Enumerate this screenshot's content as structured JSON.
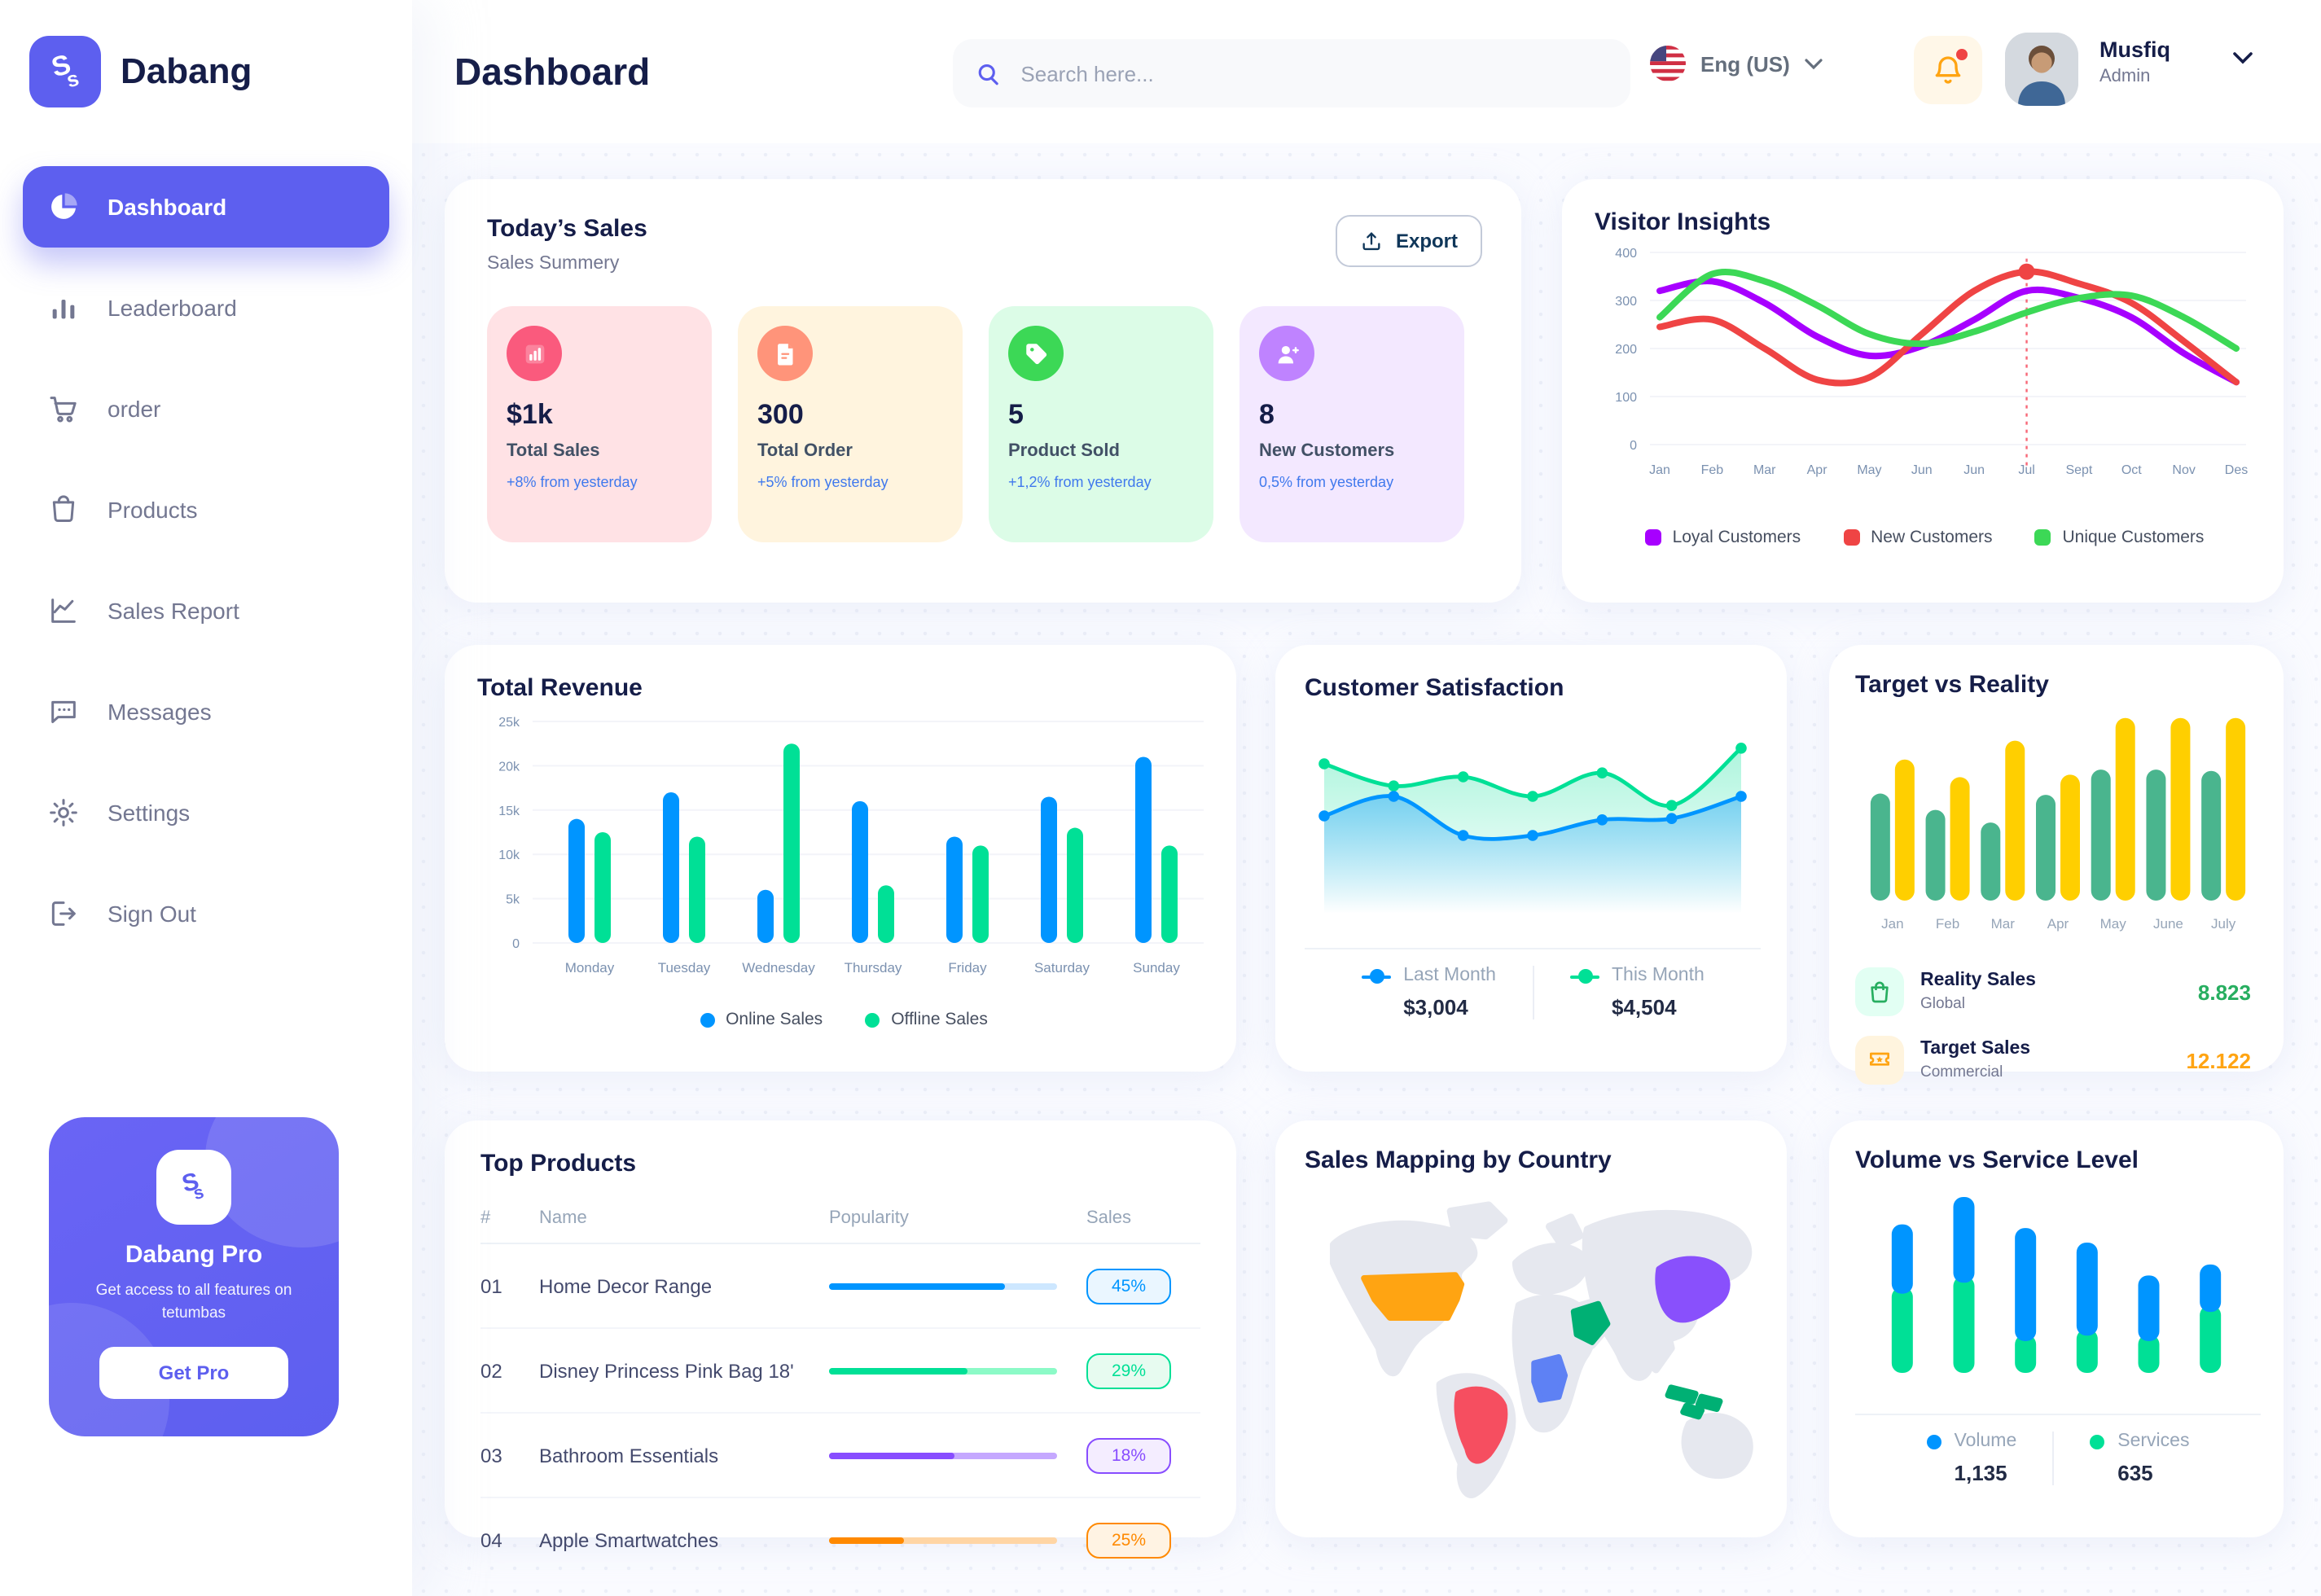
{
  "colors": {
    "accent": "#5D5FEF",
    "navy": "#151D48",
    "muted": "#737791",
    "axis": "#7B91B0",
    "delta_blue": "#4079ED"
  },
  "sidebar": {
    "brand": "Dabang",
    "items": [
      {
        "label": "Dashboard",
        "icon": "pie-chart-icon",
        "active": true
      },
      {
        "label": "Leaderboard",
        "icon": "bar-chart-icon",
        "active": false
      },
      {
        "label": "order",
        "icon": "cart-icon",
        "active": false
      },
      {
        "label": "Products",
        "icon": "bag-icon",
        "active": false
      },
      {
        "label": "Sales Report",
        "icon": "line-chart-icon",
        "active": false
      },
      {
        "label": "Messages",
        "icon": "message-icon",
        "active": false
      },
      {
        "label": "Settings",
        "icon": "gear-icon",
        "active": false
      },
      {
        "label": "Sign Out",
        "icon": "sign-out-icon",
        "active": false
      }
    ],
    "pro": {
      "title": "Dabang Pro",
      "subtitle": "Get access to all features on tetumbas",
      "cta": "Get Pro"
    }
  },
  "header": {
    "title": "Dashboard",
    "search_placeholder": "Search here...",
    "language": "Eng (US)",
    "user_name": "Musfiq",
    "user_role": "Admin"
  },
  "today_sales": {
    "title": "Today’s Sales",
    "subtitle": "Sales Summery",
    "export_label": "Export",
    "stats": [
      {
        "value": "$1k",
        "label": "Total Sales",
        "delta": "+8% from yesterday",
        "bg": "#FFE2E5",
        "icon_bg": "#FA5A7D",
        "icon": "stat-chart-icon"
      },
      {
        "value": "300",
        "label": "Total Order",
        "delta": "+5% from yesterday",
        "bg": "#FFF4DE",
        "icon_bg": "#FF947A",
        "icon": "stat-file-icon"
      },
      {
        "value": "5",
        "label": "Product Sold",
        "delta": "+1,2% from yesterday",
        "bg": "#DCFCE7",
        "icon_bg": "#3CD856",
        "icon": "stat-tag-icon"
      },
      {
        "value": "8",
        "label": "New Customers",
        "delta": "0,5% from yesterday",
        "bg": "#F3E8FF",
        "icon_bg": "#BF83FF",
        "icon": "stat-user-plus-icon"
      }
    ]
  },
  "chart_data": [
    {
      "id": "visitor_insights",
      "type": "line",
      "title": "Visitor Insights",
      "legend_position": "bottom",
      "grid": true,
      "x": [
        "Jan",
        "Feb",
        "Mar",
        "Apr",
        "May",
        "Jun",
        "Jun",
        "Jul",
        "Sept",
        "Oct",
        "Nov",
        "Des"
      ],
      "ylim": [
        0,
        400
      ],
      "yticks": [
        0,
        100,
        200,
        300,
        400
      ],
      "series": [
        {
          "name": "Loyal Customers",
          "color": "#A700FF",
          "values": [
            320,
            340,
            295,
            225,
            185,
            205,
            260,
            320,
            305,
            265,
            190,
            130
          ]
        },
        {
          "name": "New Customers",
          "color": "#EF4444",
          "values": [
            245,
            260,
            200,
            135,
            140,
            230,
            320,
            360,
            335,
            295,
            215,
            130
          ]
        },
        {
          "name": "Unique Customers",
          "color": "#3CD856",
          "values": [
            265,
            355,
            340,
            290,
            230,
            210,
            235,
            275,
            305,
            310,
            265,
            200
          ]
        }
      ],
      "highlight": {
        "x_index": 7,
        "series": "New Customers",
        "value": 360,
        "color": "#F64E60"
      }
    },
    {
      "id": "total_revenue",
      "type": "bar",
      "title": "Total Revenue",
      "legend_position": "bottom",
      "grid": true,
      "categories": [
        "Monday",
        "Tuesday",
        "Wednesday",
        "Thursday",
        "Friday",
        "Saturday",
        "Sunday"
      ],
      "ylim": [
        0,
        25000
      ],
      "ytick_labels": [
        "0",
        "5k",
        "10k",
        "15k",
        "20k",
        "25k"
      ],
      "series": [
        {
          "name": "Online Sales",
          "color": "#0095FF",
          "values": [
            14000,
            17000,
            6000,
            16000,
            12000,
            16500,
            21000
          ]
        },
        {
          "name": "Offline Sales",
          "color": "#00E096",
          "values": [
            12500,
            12000,
            22500,
            6500,
            11000,
            13000,
            11000
          ]
        }
      ]
    },
    {
      "id": "customer_satisfaction",
      "type": "area",
      "title": "Customer Satisfaction",
      "legend_position": "bottom",
      "grid": false,
      "ylim": [
        0,
        100
      ],
      "series": [
        {
          "name": "Last Month",
          "color": "#0095FF",
          "total": "$3,004",
          "values": [
            40,
            55,
            25,
            25,
            37,
            38,
            55
          ]
        },
        {
          "name": "This Month",
          "color": "#00E096",
          "total": "$4,504",
          "values": [
            80,
            63,
            70,
            55,
            73,
            48,
            92
          ]
        }
      ]
    },
    {
      "id": "target_vs_reality",
      "type": "bar",
      "title": "Target vs Reality",
      "legend_position": "bottom",
      "grid": false,
      "categories": [
        "Jan",
        "Feb",
        "Mar",
        "Apr",
        "May",
        "June",
        "July"
      ],
      "ylim": [
        0,
        15
      ],
      "series": [
        {
          "name": "Reality Sales",
          "color": "#4AB58E",
          "values": [
            8.5,
            7.2,
            6.2,
            8.4,
            10.4,
            10.4,
            10.3
          ]
        },
        {
          "name": "Target Sales",
          "color": "#FFCF00",
          "values": [
            11.2,
            9.8,
            12.7,
            10.0,
            14.5,
            14.5,
            14.5
          ]
        }
      ],
      "legend": [
        {
          "name": "Reality Sales",
          "sub": "Global",
          "value": "8.823",
          "value_color": "#27AE60",
          "icon": "mini-bag-icon",
          "icon_bg": "#E2FFF3",
          "icon_color": "#27AE60"
        },
        {
          "name": "Target Sales",
          "sub": "Commercial",
          "value": "12.122",
          "value_color": "#FFA412",
          "icon": "ticket-icon",
          "icon_bg": "#FFF4DE",
          "icon_color": "#FFA412"
        }
      ]
    },
    {
      "id": "volume_service",
      "type": "stacked-bar",
      "title": "Volume vs Service Level",
      "legend_position": "bottom",
      "grid": false,
      "series": [
        {
          "name": "Volume",
          "color": "#0095FF",
          "total": "1,135",
          "values": [
            38,
            47,
            62,
            51,
            36,
            26
          ]
        },
        {
          "name": "Services",
          "color": "#00E096",
          "total": "635",
          "values": [
            47,
            53,
            21,
            24,
            21,
            37
          ]
        }
      ]
    }
  ],
  "top_products": {
    "title": "Top Products",
    "columns": [
      "#",
      "Name",
      "Popularity",
      "Sales"
    ],
    "rows": [
      {
        "num": "01",
        "name": "Home Decor Range",
        "popularity": 0.77,
        "sales": "45%",
        "color": "#0095FF",
        "track": "#CDE7FF",
        "badge_bg": "#EAF6FF"
      },
      {
        "num": "02",
        "name": "Disney Princess Pink Bag 18'",
        "popularity": 0.61,
        "sales": "29%",
        "color": "#00E096",
        "track": "#8CFAC7",
        "badge_bg": "#E7FBF0"
      },
      {
        "num": "03",
        "name": "Bathroom Essentials",
        "popularity": 0.55,
        "sales": "18%",
        "color": "#884DFF",
        "track": "#C5A8FF",
        "badge_bg": "#F4EDFF"
      },
      {
        "num": "04",
        "name": "Apple Smartwatches",
        "popularity": 0.33,
        "sales": "25%",
        "color": "#FF8900",
        "track": "#FFD5A4",
        "badge_bg": "#FFF3E3"
      }
    ]
  },
  "sales_mapping": {
    "title": "Sales Mapping by Country",
    "countries": [
      {
        "name": "united-states",
        "color": "#FFA412"
      },
      {
        "name": "brazil",
        "color": "#F64E60"
      },
      {
        "name": "dr-congo",
        "color": "#5E81F4"
      },
      {
        "name": "saudi-arabia",
        "color": "#00B074"
      },
      {
        "name": "china",
        "color": "#8950FC"
      },
      {
        "name": "indonesia",
        "color": "#00B074"
      }
    ]
  }
}
